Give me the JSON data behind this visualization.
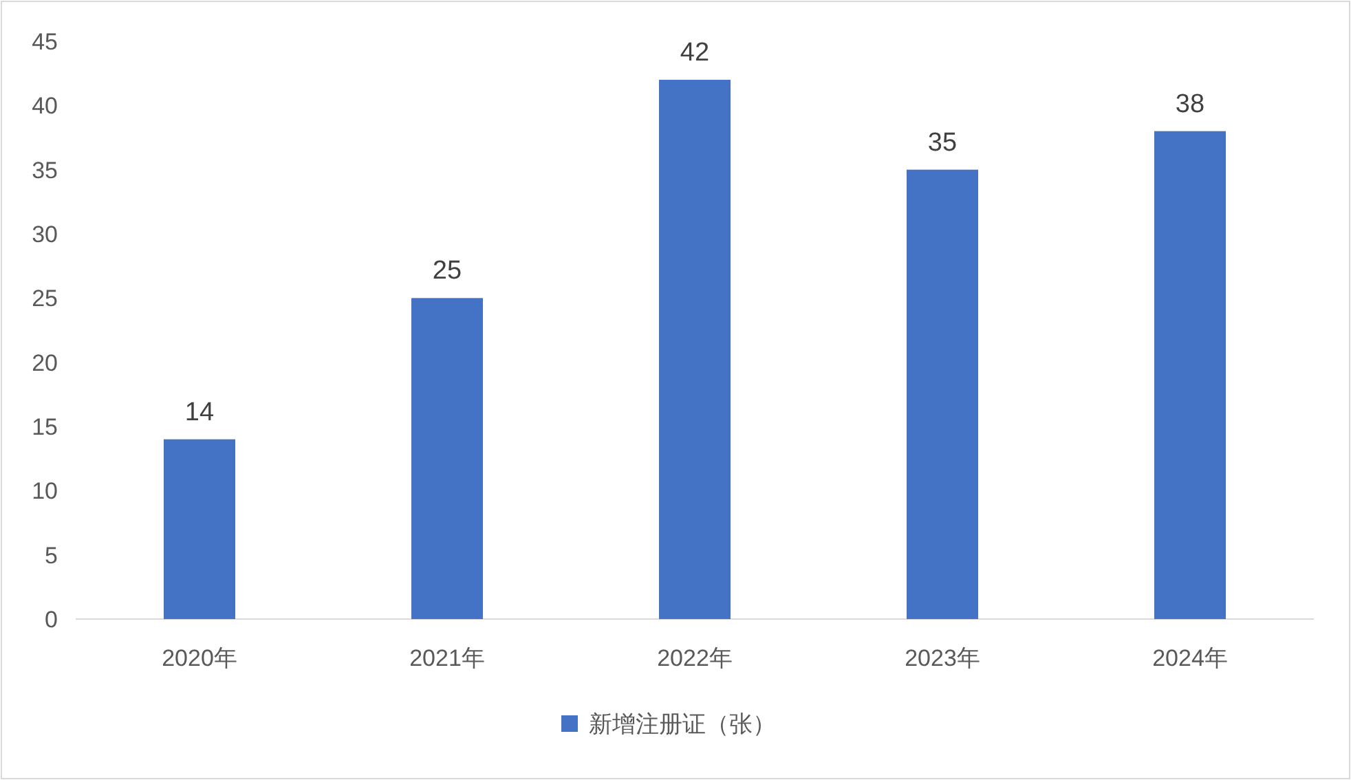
{
  "chart_data": {
    "type": "bar",
    "categories": [
      "2020年",
      "2021年",
      "2022年",
      "2023年",
      "2024年"
    ],
    "series": [
      {
        "name": "新增注册证（张）",
        "color": "#4472c4",
        "values": [
          14,
          25,
          42,
          35,
          38
        ]
      }
    ],
    "ylim": [
      0,
      45
    ],
    "yticks": [
      0,
      5,
      10,
      15,
      20,
      25,
      30,
      35,
      40,
      45
    ],
    "data_labels": true,
    "legend": "bottom"
  }
}
